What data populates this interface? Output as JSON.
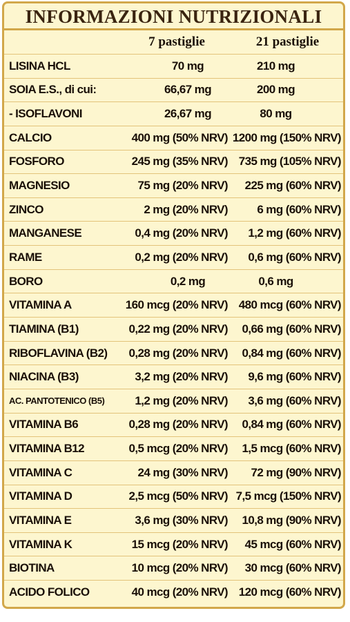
{
  "title": "INFORMAZIONI NUTRIZIONALI",
  "columns": [
    "",
    "7 pastiglie",
    "21 pastiglie"
  ],
  "rows": [
    {
      "name": "LISINA HCL",
      "v1": "70 mg",
      "v2": "210 mg",
      "centered": true
    },
    {
      "name": "SOIA E.S., di cui:",
      "v1": "66,67 mg",
      "v2": "200 mg",
      "centered": true
    },
    {
      "name": "- ISOFLAVONI",
      "v1": "26,67 mg",
      "v2": "80 mg",
      "centered": true
    },
    {
      "name": "CALCIO",
      "v1": "400 mg (50% NRV)",
      "v2": "1200 mg (150% NRV)"
    },
    {
      "name": "FOSFORO",
      "v1": "245 mg (35% NRV)",
      "v2": "735 mg (105% NRV)"
    },
    {
      "name": "MAGNESIO",
      "v1": "75 mg (20% NRV)",
      "v2": "225 mg (60% NRV)"
    },
    {
      "name": "ZINCO",
      "v1": "2 mg (20% NRV)",
      "v2": "6 mg (60% NRV)"
    },
    {
      "name": "MANGANESE",
      "v1": "0,4 mg (20% NRV)",
      "v2": "1,2 mg (60% NRV)"
    },
    {
      "name": "RAME",
      "v1": "0,2 mg (20% NRV)",
      "v2": "0,6 mg (60% NRV)"
    },
    {
      "name": "BORO",
      "v1": "0,2 mg",
      "v2": "0,6 mg",
      "centered": true
    },
    {
      "name": "VITAMINA A",
      "v1": "160 mcg (20% NRV)",
      "v2": "480 mcg (60% NRV)"
    },
    {
      "name": "TIAMINA (B1)",
      "v1": "0,22 mg (20% NRV)",
      "v2": "0,66 mg (60% NRV)"
    },
    {
      "name": "RIBOFLAVINA (B2)",
      "v1": "0,28 mg (20% NRV)",
      "v2": "0,84 mg (60% NRV)"
    },
    {
      "name": "NIACINA (B3)",
      "v1": "3,2 mg (20% NRV)",
      "v2": "9,6 mg (60% NRV)"
    },
    {
      "name": "AC. PANTOTENICO (B5)",
      "v1": "1,2 mg (20% NRV)",
      "v2": "3,6 mg (60% NRV)",
      "small": true
    },
    {
      "name": "VITAMINA B6",
      "v1": "0,28 mg (20% NRV)",
      "v2": "0,84 mg (60% NRV)"
    },
    {
      "name": "VITAMINA B12",
      "v1": "0,5 mcg (20% NRV)",
      "v2": "1,5 mcg (60% NRV)"
    },
    {
      "name": "VITAMINA C",
      "v1": "24 mg (30% NRV)",
      "v2": "72 mg (90% NRV)"
    },
    {
      "name": "VITAMINA D",
      "v1": "2,5 mcg (50% NRV)",
      "v2": "7,5 mcg (150% NRV)"
    },
    {
      "name": "VITAMINA E",
      "v1": "3,6 mg (30% NRV)",
      "v2": "10,8 mg (90% NRV)"
    },
    {
      "name": "VITAMINA K",
      "v1": "15 mcg (20% NRV)",
      "v2": "45 mcg (60% NRV)"
    },
    {
      "name": "BIOTINA",
      "v1": "10 mcg (20% NRV)",
      "v2": "30 mcg (60% NRV)"
    },
    {
      "name": "ACIDO FOLICO",
      "v1": "40 mcg (20% NRV)",
      "v2": "120 mcg (60% NRV)"
    }
  ],
  "colors": {
    "background": "#fdf6cf",
    "border": "#d2a74a",
    "text": "#1a1008"
  }
}
